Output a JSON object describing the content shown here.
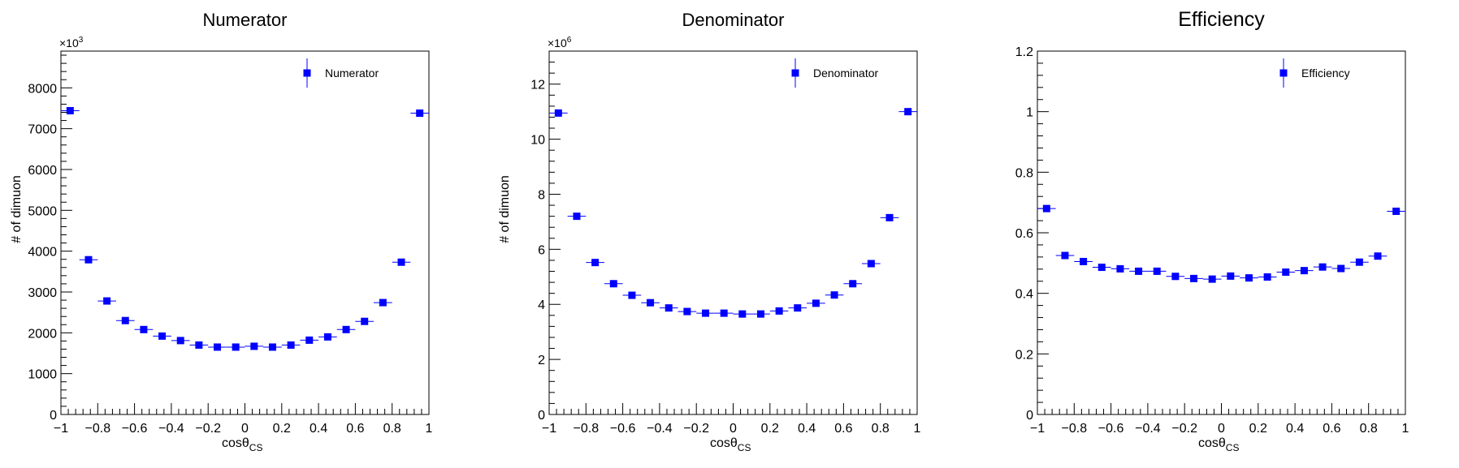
{
  "chart_data": [
    {
      "type": "scatter",
      "title": "Numerator",
      "xlabel": "cosθ",
      "xlabel_sub": "CS",
      "ylabel": "# of dimuon",
      "exponent_base": "×10",
      "exponent": "3",
      "xlim": [
        -1,
        1
      ],
      "ylim": [
        0,
        8.9
      ],
      "yticks": [
        0,
        1,
        2,
        3,
        4,
        5,
        6,
        7,
        8
      ],
      "ytick_labels": [
        "0",
        "1000",
        "2000",
        "3000",
        "4000",
        "5000",
        "6000",
        "7000",
        "8000"
      ],
      "xticks": [
        -1,
        -0.8,
        -0.6,
        -0.4,
        -0.2,
        0,
        0.2,
        0.4,
        0.6,
        0.8,
        1
      ],
      "xtick_labels": [
        "−1",
        "−0.8",
        "−0.6",
        "−0.4",
        "−0.2",
        "0",
        "0.2",
        "0.4",
        "0.6",
        "0.8",
        "1"
      ],
      "legend": "top-right",
      "series": [
        {
          "name": "Numerator",
          "color": "#0000ff",
          "x": [
            -0.95,
            -0.85,
            -0.75,
            -0.65,
            -0.55,
            -0.45,
            -0.35,
            -0.25,
            -0.15,
            -0.05,
            0.05,
            0.15,
            0.25,
            0.35,
            0.45,
            0.55,
            0.65,
            0.75,
            0.85,
            0.95
          ],
          "y": [
            7.44,
            3.79,
            2.78,
            2.3,
            2.08,
            1.92,
            1.81,
            1.7,
            1.65,
            1.65,
            1.67,
            1.65,
            1.7,
            1.82,
            1.9,
            2.08,
            2.28,
            2.74,
            3.73,
            7.38
          ],
          "x_err": 0.05
        }
      ]
    },
    {
      "type": "scatter",
      "title": "Denominator",
      "xlabel": "cosθ",
      "xlabel_sub": "CS",
      "ylabel": "# of dimuon",
      "exponent_base": "×10",
      "exponent": "6",
      "xlim": [
        -1,
        1
      ],
      "ylim": [
        0,
        13.2
      ],
      "yticks": [
        0,
        2,
        4,
        6,
        8,
        10,
        12
      ],
      "ytick_labels": [
        "0",
        "2",
        "4",
        "6",
        "8",
        "10",
        "12"
      ],
      "xticks": [
        -1,
        -0.8,
        -0.6,
        -0.4,
        -0.2,
        0,
        0.2,
        0.4,
        0.6,
        0.8,
        1
      ],
      "xtick_labels": [
        "−1",
        "−0.8",
        "−0.6",
        "−0.4",
        "−0.2",
        "0",
        "0.2",
        "0.4",
        "0.6",
        "0.8",
        "1"
      ],
      "legend": "top-right",
      "series": [
        {
          "name": "Denominator",
          "color": "#0000ff",
          "x": [
            -0.95,
            -0.85,
            -0.75,
            -0.65,
            -0.55,
            -0.45,
            -0.35,
            -0.25,
            -0.15,
            -0.05,
            0.05,
            0.15,
            0.25,
            0.35,
            0.45,
            0.55,
            0.65,
            0.75,
            0.85,
            0.95
          ],
          "y": [
            10.95,
            7.2,
            5.52,
            4.75,
            4.33,
            4.06,
            3.87,
            3.74,
            3.68,
            3.68,
            3.65,
            3.65,
            3.76,
            3.87,
            4.04,
            4.34,
            4.75,
            5.48,
            7.15,
            11.0
          ],
          "x_err": 0.05
        }
      ]
    },
    {
      "type": "scatter",
      "title": "Efficiency",
      "xlabel": "cosθ",
      "xlabel_sub": "CS",
      "ylabel": "",
      "xlim": [
        -1,
        1
      ],
      "ylim": [
        0,
        1.2
      ],
      "yticks": [
        0,
        0.2,
        0.4,
        0.6,
        0.8,
        1,
        1.2
      ],
      "ytick_labels": [
        "0",
        "0.2",
        "0.4",
        "0.6",
        "0.8",
        "1",
        "1.2"
      ],
      "xticks": [
        -1,
        -0.8,
        -0.6,
        -0.4,
        -0.2,
        0,
        0.2,
        0.4,
        0.6,
        0.8,
        1
      ],
      "xtick_labels": [
        "−1",
        "−0.8",
        "−0.6",
        "−0.4",
        "−0.2",
        "0",
        "0.2",
        "0.4",
        "0.6",
        "0.8",
        "1"
      ],
      "legend": "top-right",
      "series": [
        {
          "name": "Efficiency",
          "color": "#0000ff",
          "x": [
            -0.95,
            -0.85,
            -0.75,
            -0.65,
            -0.55,
            -0.45,
            -0.35,
            -0.25,
            -0.15,
            -0.05,
            0.05,
            0.15,
            0.25,
            0.35,
            0.45,
            0.55,
            0.65,
            0.75,
            0.85,
            0.95
          ],
          "y": [
            0.68,
            0.525,
            0.505,
            0.486,
            0.481,
            0.473,
            0.473,
            0.456,
            0.449,
            0.447,
            0.457,
            0.451,
            0.454,
            0.47,
            0.475,
            0.487,
            0.482,
            0.503,
            0.523,
            0.671
          ],
          "x_err": 0.05
        }
      ]
    }
  ]
}
